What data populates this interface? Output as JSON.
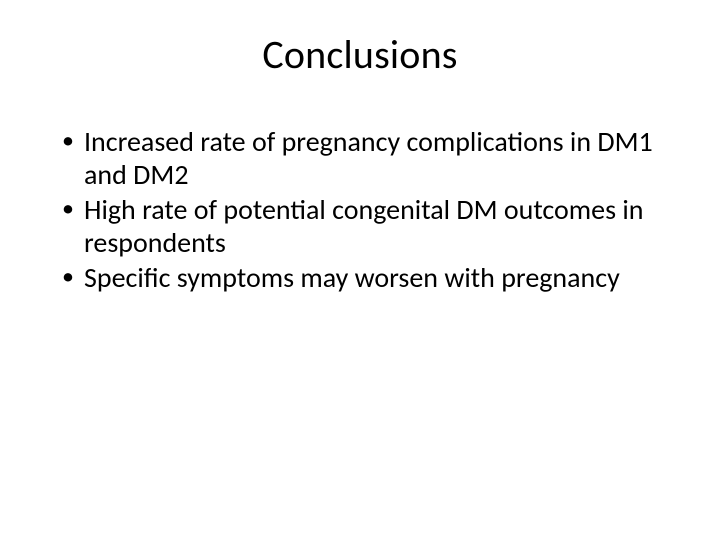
{
  "slide": {
    "title": "Conclusions",
    "bullets": [
      "Increased rate of pregnancy complications in DM1 and DM2",
      "High rate of potential congenital DM outcomes in respondents",
      "Specific symptoms may worsen with pregnancy"
    ],
    "colors": {
      "background": "#ffffff",
      "text": "#000000"
    },
    "typography": {
      "title_fontsize": 40,
      "bullet_fontsize": 28,
      "font_family": "Calibri"
    }
  }
}
